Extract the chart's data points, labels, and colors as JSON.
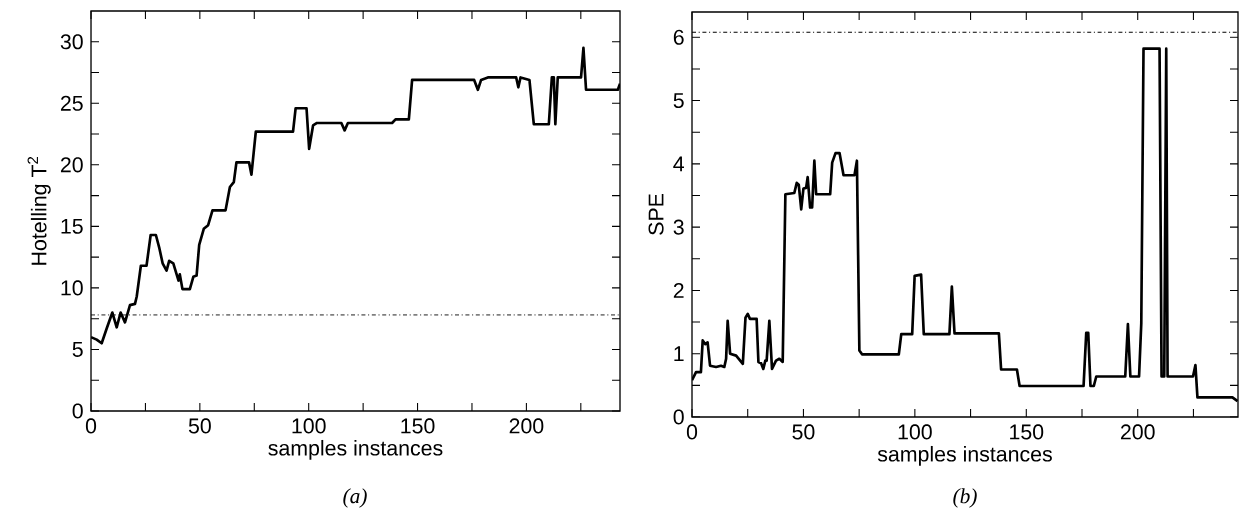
{
  "chart_data": [
    {
      "type": "line",
      "xlabel": "samples instances",
      "ylabel": "Hotelling T$^{2}$",
      "annotations": [
        "(a)"
      ],
      "grid": false,
      "marker": "none",
      "xlim": [
        0,
        243
      ],
      "ylim": [
        0,
        32.5
      ],
      "xticks": [
        0,
        {
          "value": 25,
          "label": null
        },
        50,
        {
          "value": 75,
          "label": null
        },
        100,
        {
          "value": 125,
          "label": null
        },
        150,
        {
          "value": 175,
          "label": null
        },
        200,
        {
          "value": 225,
          "label": null
        }
      ],
      "yticks": [
        0,
        {
          "value": 2.5,
          "label": null
        },
        5,
        {
          "value": 7.5,
          "label": null
        },
        10,
        {
          "value": 12.5,
          "label": null
        },
        15,
        {
          "value": 17.5,
          "label": null
        },
        20,
        {
          "value": 22.5,
          "label": null
        },
        25,
        {
          "value": 27.5,
          "label": null
        },
        30
      ],
      "ref_lines": [
        {
          "axis": "y",
          "value": 7.8,
          "color": "#000000",
          "line_style": "dashdot"
        }
      ],
      "series": [
        {
          "color": "#000000",
          "line_style": "solid",
          "x": [
            0,
            2.6,
            4.9,
            7.2,
            9.8,
            11.8,
            13.6,
            15.6,
            17.9,
            20.2,
            21,
            22.9,
            25.5,
            27.4,
            29.8,
            31.3,
            32.9,
            34.7,
            35.9,
            37.8,
            40.2,
            40.8,
            42,
            45.4,
            47,
            48.5,
            49.7,
            51.8,
            53.8,
            55.8,
            61.8,
            63.8,
            65.6,
            66.8,
            72.6,
            73.7,
            75.7,
            92.8,
            94,
            99,
            100.2,
            102,
            103.8,
            115,
            116.5,
            118,
            138.3,
            139.9,
            146,
            147.5,
            176,
            177.7,
            179.2,
            182.3,
            195.3,
            196.3,
            197.3,
            201.4,
            203.4,
            210.3,
            211.7,
            212.6,
            213.3,
            214.4,
            225.1,
            226.2,
            227.4,
            242,
            243
          ],
          "values": [
            6.0,
            5.8,
            5.5,
            6.7,
            8.0,
            6.8,
            8.0,
            7.2,
            8.6,
            8.7,
            9.3,
            11.8,
            11.8,
            14.3,
            14.3,
            13.3,
            12.0,
            11.4,
            12.2,
            12.0,
            10.6,
            11.1,
            9.9,
            9.9,
            10.9,
            11.0,
            13.5,
            14.8,
            15.1,
            16.3,
            16.3,
            18.2,
            18.6,
            20.2,
            20.2,
            19.2,
            22.7,
            22.7,
            24.6,
            24.6,
            21.3,
            23.2,
            23.4,
            23.4,
            22.8,
            23.4,
            23.4,
            23.7,
            23.7,
            26.9,
            26.9,
            26.1,
            26.9,
            27.1,
            27.1,
            26.3,
            27.1,
            26.9,
            23.3,
            23.3,
            27.1,
            27.1,
            23.3,
            27.1,
            27.1,
            29.5,
            26.1,
            26.1,
            26.6
          ]
        }
      ]
    },
    {
      "type": "line",
      "xlabel": "samples instances",
      "ylabel": "SPE",
      "annotations": [
        "(b)"
      ],
      "grid": false,
      "marker": "none",
      "xlim": [
        0,
        245
      ],
      "ylim": [
        0,
        6.4
      ],
      "xticks": [
        0,
        {
          "value": 25,
          "label": null
        },
        50,
        {
          "value": 75,
          "label": null
        },
        100,
        {
          "value": 125,
          "label": null
        },
        150,
        {
          "value": 175,
          "label": null
        },
        200,
        {
          "value": 225,
          "label": null
        }
      ],
      "yticks": [
        0,
        {
          "value": 0.5,
          "label": null
        },
        1,
        {
          "value": 1.5,
          "label": null
        },
        2,
        {
          "value": 2.5,
          "label": null
        },
        3,
        {
          "value": 3.5,
          "label": null
        },
        4,
        {
          "value": 4.5,
          "label": null
        },
        5,
        {
          "value": 5.5,
          "label": null
        },
        6
      ],
      "ref_lines": [
        {
          "axis": "y",
          "value": 6.08,
          "color": "#000000",
          "line_style": "dashdot"
        }
      ],
      "series": [
        {
          "color": "#000000",
          "line_style": "solid",
          "x": [
            0,
            1.8,
            4,
            4.8,
            6,
            7,
            8.1,
            10.8,
            13,
            14.5,
            15.3,
            16,
            17.1,
            19.8,
            22.8,
            24,
            25,
            26,
            29,
            29.8,
            31,
            32,
            32.9,
            33.5,
            34.7,
            35.9,
            37.7,
            39.2,
            40.7,
            41.9,
            45.9,
            47,
            47.9,
            49,
            50,
            51.2,
            51.9,
            53,
            53.9,
            54.9,
            55.7,
            62,
            62.9,
            64.4,
            66.2,
            68,
            72.9,
            74,
            75.1,
            76.3,
            92.8,
            93.9,
            98.8,
            99.9,
            102.8,
            104,
            115.5,
            116.6,
            117.8,
            137.7,
            138.7,
            145.8,
            147,
            175.7,
            176.9,
            177.8,
            178.8,
            180.3,
            181.4,
            194.4,
            195.6,
            196.7,
            200.6,
            201.6,
            202.6,
            209.8,
            210.7,
            211.9,
            212.8,
            213.4,
            224.8,
            225.9,
            226.8,
            242.5,
            244.8
          ],
          "values": [
            0.58,
            0.71,
            0.71,
            1.21,
            1.15,
            1.18,
            0.81,
            0.79,
            0.81,
            0.79,
            0.92,
            1.52,
            1.0,
            0.97,
            0.84,
            1.57,
            1.63,
            1.55,
            1.55,
            0.87,
            0.85,
            0.76,
            0.89,
            0.89,
            1.52,
            0.76,
            0.89,
            0.92,
            0.87,
            3.52,
            3.54,
            3.7,
            3.67,
            3.28,
            3.61,
            3.62,
            3.79,
            3.31,
            3.31,
            4.05,
            3.52,
            3.52,
            4.02,
            4.17,
            4.17,
            3.82,
            3.82,
            4.05,
            1.05,
            0.99,
            0.99,
            1.31,
            1.31,
            2.23,
            2.25,
            1.31,
            1.31,
            2.06,
            1.32,
            1.32,
            0.75,
            0.75,
            0.49,
            0.49,
            1.33,
            1.33,
            0.49,
            0.49,
            0.64,
            0.64,
            1.47,
            0.64,
            0.64,
            1.48,
            5.82,
            5.82,
            0.64,
            0.64,
            5.82,
            0.64,
            0.64,
            0.82,
            0.31,
            0.31,
            0.25
          ]
        }
      ]
    }
  ]
}
